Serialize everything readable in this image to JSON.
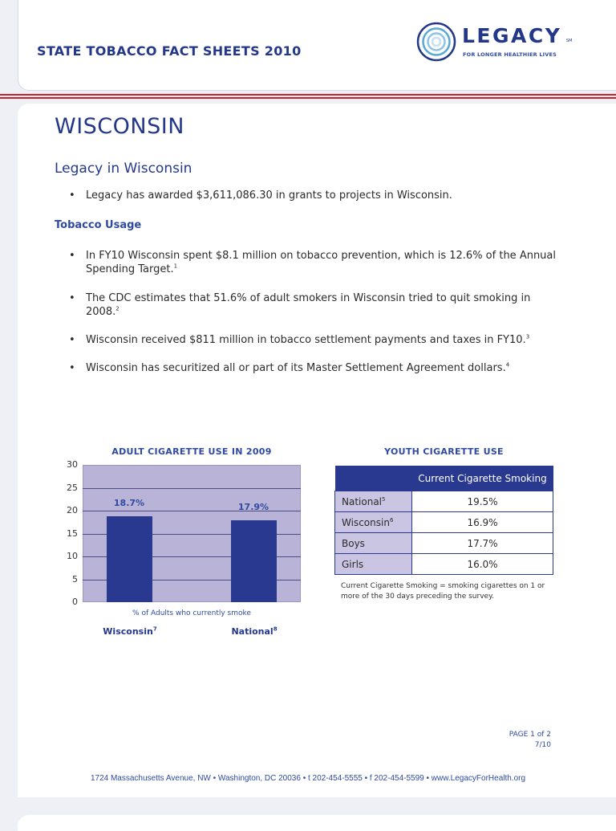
{
  "header": {
    "title": "STATE TOBACCO FACT SHEETS 2010",
    "logo_word": "LEGACY",
    "logo_tm": "SM",
    "logo_tagline": "FOR LONGER HEALTHIER LIVES"
  },
  "page": {
    "state": "WISCONSIN",
    "section_title": "Legacy in Wisconsin",
    "legacy_bullet": "Legacy has awarded $3,611,086.30 in grants to projects in Wisconsin.",
    "usage_title": "Tobacco Usage",
    "usage_bullets": [
      {
        "text": "In FY10 Wisconsin spent $8.1 million on tobacco prevention, which is 12.6% of the Annual Spending Target.",
        "ref": "1"
      },
      {
        "text": "The CDC estimates that 51.6% of adult smokers in Wisconsin tried to quit smoking in 2008.",
        "ref": "2"
      },
      {
        "text": "Wisconsin received $811 million in tobacco settlement payments and taxes in FY10.",
        "ref": "3"
      },
      {
        "text": "Wisconsin has securitized all or part of its Master Settlement Agreement dollars.",
        "ref": "4"
      }
    ]
  },
  "chart_data": {
    "type": "bar",
    "title": "ADULT CIGARETTE USE IN 2009",
    "categories": [
      "Wisconsin",
      "National"
    ],
    "category_refs": [
      "7",
      "8"
    ],
    "values": [
      18.7,
      17.9
    ],
    "value_labels": [
      "18.7%",
      "17.9%"
    ],
    "xlabel": "% of Adults who currently smoke",
    "ylabel": "",
    "ylim": [
      0,
      30
    ],
    "yticks": [
      30,
      25,
      20,
      15,
      10,
      5,
      0
    ],
    "grid": true
  },
  "youth_table": {
    "title": "YOUTH CIGARETTE USE",
    "column_header": "Current Cigarette Smoking",
    "rows": [
      {
        "label": "National",
        "ref": "5",
        "value": "19.5%"
      },
      {
        "label": "Wisconsin",
        "ref": "6",
        "value": "16.9%"
      },
      {
        "label": "Boys",
        "ref": "",
        "value": "17.7%"
      },
      {
        "label": "Girls",
        "ref": "",
        "value": "16.0%"
      }
    ],
    "note": "Current Cigarette Smoking = smoking cigarettes on 1 or more of the 30 days preceding the survey."
  },
  "footer": {
    "page_label": "PAGE 1 of 2",
    "date": "7/10",
    "address": "1724 Massachusetts Avenue, NW • Washington, DC 20036 • t 202-454-5555 • f 202-454-5599 • www.LegacyForHealth.org"
  },
  "colors": {
    "brand_blue": "#24388a",
    "bar_blue": "#2a3990",
    "plot_bg": "#b9b4d7",
    "rule_red": "#c7252d"
  }
}
